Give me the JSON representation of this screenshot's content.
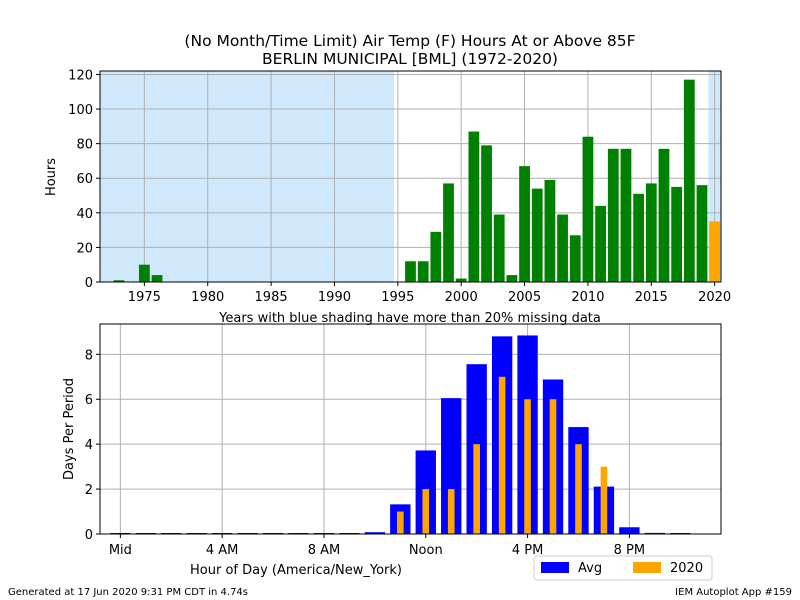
{
  "footer": {
    "generated": "Generated at 17 Jun 2020 9:31 PM CDT in 4.74s",
    "app": "IEM Autoplot App #159"
  },
  "colors": {
    "bar_green": "#008000",
    "bar_orange": "#ffa500",
    "bar_blue": "#0000ff",
    "shade_blue": "#cfe8fb",
    "grid": "#b0b0b0"
  },
  "chart_data": [
    {
      "type": "bar",
      "title": "(No Month/Time Limit) Air Temp (F) Hours At or Above 85F",
      "subtitle": "BERLIN MUNICIPAL [BML] (1972-2020)",
      "xlabel": "Years with blue shading have more than 20% missing data",
      "ylabel": "Hours",
      "xlim": [
        1971.5,
        2020.5
      ],
      "ylim": [
        0,
        122
      ],
      "xticks": [
        1975,
        1980,
        1985,
        1990,
        1995,
        2000,
        2005,
        2010,
        2015,
        2020
      ],
      "yticks": [
        0,
        20,
        40,
        60,
        80,
        100,
        120
      ],
      "grid": true,
      "shaded_ranges": [
        [
          1971.5,
          1994.7
        ],
        [
          2019.5,
          2020.5
        ]
      ],
      "years": [
        1972,
        1973,
        1974,
        1975,
        1976,
        1977,
        1978,
        1979,
        1980,
        1981,
        1982,
        1983,
        1984,
        1985,
        1986,
        1987,
        1988,
        1989,
        1990,
        1991,
        1992,
        1993,
        1994,
        1995,
        1996,
        1997,
        1998,
        1999,
        2000,
        2001,
        2002,
        2003,
        2004,
        2005,
        2006,
        2007,
        2008,
        2009,
        2010,
        2011,
        2012,
        2013,
        2014,
        2015,
        2016,
        2017,
        2018,
        2019,
        2020
      ],
      "values": [
        0,
        1,
        0,
        10,
        4,
        0,
        0,
        0,
        0,
        0,
        0,
        0,
        0,
        0,
        0,
        0,
        0,
        0,
        0,
        0,
        0,
        0,
        0,
        0,
        12,
        12,
        29,
        57,
        2,
        87,
        79,
        39,
        4,
        67,
        54,
        59,
        39,
        27,
        84,
        44,
        77,
        77,
        51,
        57,
        77,
        55,
        117,
        56,
        35
      ],
      "highlight_year": 2020
    },
    {
      "type": "bar",
      "xlabel": "Hour of Day (America/New_York)",
      "ylabel": "Days Per Period",
      "xlim": [
        -0.8,
        23.6
      ],
      "ylim": [
        0,
        9.35
      ],
      "xticks": [
        0,
        4,
        8,
        12,
        16,
        20
      ],
      "xtick_labels": [
        "Mid",
        "4 AM",
        "8 AM",
        "Noon",
        "4 PM",
        "8 PM"
      ],
      "yticks": [
        0,
        2,
        4,
        6,
        8
      ],
      "grid": true,
      "legend_position": "below-right",
      "series": [
        {
          "name": "Avg",
          "values": [
            0.01,
            0.01,
            0.01,
            0.01,
            0.01,
            0.01,
            0.01,
            0.01,
            0.01,
            0.01,
            0.08,
            1.32,
            3.72,
            6.05,
            7.56,
            8.8,
            8.84,
            6.88,
            4.76,
            2.11,
            0.3,
            0.05,
            0.02,
            0.0
          ]
        },
        {
          "name": "2020",
          "values": [
            0,
            0,
            0,
            0,
            0,
            0,
            0,
            0,
            0,
            0,
            0,
            1,
            2,
            2,
            4,
            7,
            6,
            6,
            4,
            3,
            0,
            0,
            0,
            0
          ]
        }
      ]
    }
  ]
}
